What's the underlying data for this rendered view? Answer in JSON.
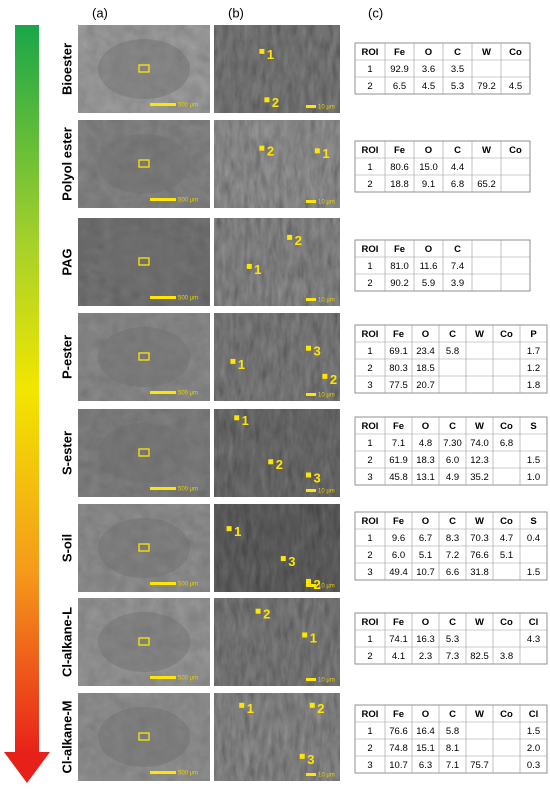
{
  "panel_labels": [
    "(a)",
    "(b)",
    "(c)"
  ],
  "rows": [
    {
      "name": "Bioester",
      "scale_a": "500 μm",
      "scale_b": "10 μm",
      "rois": [
        "1",
        "2"
      ],
      "table": {
        "header": [
          "ROI",
          "Fe",
          "O",
          "C",
          "W",
          "Co"
        ],
        "rows": [
          [
            "1",
            "92.9",
            "3.6",
            "3.5",
            null,
            null
          ],
          [
            "2",
            "6.5",
            "4.5",
            "5.3",
            "79.2",
            "4.5"
          ]
        ]
      }
    },
    {
      "name": "Polyol ester",
      "scale_a": "500 μm",
      "scale_b": "10 μm",
      "rois": [
        "1",
        "2"
      ],
      "table": {
        "header": [
          "ROI",
          "Fe",
          "O",
          "C",
          "W",
          "Co"
        ],
        "rows": [
          [
            "1",
            "80.6",
            "15.0",
            "4.4",
            null,
            null
          ],
          [
            "2",
            "18.8",
            "9.1",
            "6.8",
            "65.2",
            null
          ]
        ]
      }
    },
    {
      "name": "PAG",
      "scale_a": "500 μm",
      "scale_b": "10 μm",
      "rois": [
        "1",
        "2"
      ],
      "table": {
        "header": [
          "ROI",
          "Fe",
          "O",
          "C",
          null,
          null
        ],
        "rows": [
          [
            "1",
            "81.0",
            "11.6",
            "7.4",
            null,
            null
          ],
          [
            "2",
            "90.2",
            "5.9",
            "3.9",
            null,
            null
          ]
        ]
      }
    },
    {
      "name": "P-ester",
      "scale_a": "500 μm",
      "scale_b": "10 μm",
      "rois": [
        "1",
        "2",
        "3"
      ],
      "table": {
        "header": [
          "ROI",
          "Fe",
          "O",
          "C",
          "W",
          "Co",
          "P"
        ],
        "rows": [
          [
            "1",
            "69.1",
            "23.4",
            "5.8",
            null,
            null,
            "1.7"
          ],
          [
            "2",
            "80.3",
            "18.5",
            null,
            null,
            null,
            "1.2"
          ],
          [
            "3",
            "77.5",
            "20.7",
            null,
            null,
            null,
            "1.8"
          ]
        ]
      }
    },
    {
      "name": "S-ester",
      "scale_a": "500 μm",
      "scale_b": "10 μm",
      "rois": [
        "1",
        "2",
        "3"
      ],
      "table": {
        "header": [
          "ROI",
          "Fe",
          "O",
          "C",
          "W",
          "Co",
          "S"
        ],
        "rows": [
          [
            "1",
            "7.1",
            "4.8",
            "7.30",
            "74.0",
            "6.8",
            null
          ],
          [
            "2",
            "61.9",
            "18.3",
            "6.0",
            "12.3",
            null,
            "1.5"
          ],
          [
            "3",
            "45.8",
            "13.1",
            "4.9",
            "35.2",
            null,
            "1.0"
          ]
        ]
      }
    },
    {
      "name": "S-oil",
      "scale_a": "500 μm",
      "scale_b": "10 μm",
      "rois": [
        "1",
        "2",
        "3"
      ],
      "table": {
        "header": [
          "ROI",
          "Fe",
          "O",
          "C",
          "W",
          "Co",
          "S"
        ],
        "rows": [
          [
            "1",
            "9.6",
            "6.7",
            "8.3",
            "70.3",
            "4.7",
            "0.4"
          ],
          [
            "2",
            "6.0",
            "5.1",
            "7.2",
            "76.6",
            "5.1",
            null
          ],
          [
            "3",
            "49.4",
            "10.7",
            "6.6",
            "31.8",
            null,
            "1.5"
          ]
        ]
      }
    },
    {
      "name": "Cl-alkane-L",
      "scale_a": "500 μm",
      "scale_b": "10 μm",
      "rois": [
        "1",
        "2"
      ],
      "table": {
        "header": [
          "ROI",
          "Fe",
          "O",
          "C",
          "W",
          "Co",
          "Cl"
        ],
        "rows": [
          [
            "1",
            "74.1",
            "16.3",
            "5.3",
            null,
            null,
            "4.3"
          ],
          [
            "2",
            "4.1",
            "2.3",
            "7.3",
            "82.5",
            "3.8",
            null
          ]
        ]
      }
    },
    {
      "name": "Cl-alkane-M",
      "scale_a": "500 μm",
      "scale_b": "10 μm",
      "rois": [
        "1",
        "2",
        "3"
      ],
      "table": {
        "header": [
          "ROI",
          "Fe",
          "O",
          "C",
          "W",
          "Co",
          "Cl"
        ],
        "rows": [
          [
            "1",
            "76.6",
            "16.4",
            "5.8",
            null,
            null,
            "1.5"
          ],
          [
            "2",
            "74.8",
            "15.1",
            "8.1",
            null,
            null,
            "2.0"
          ],
          [
            "3",
            "10.7",
            "6.3",
            "7.1",
            "75.7",
            null,
            "0.3"
          ]
        ]
      }
    }
  ]
}
